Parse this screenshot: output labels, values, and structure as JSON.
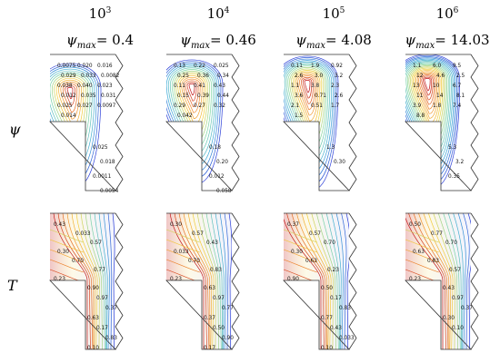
{
  "columns": [
    {
      "ra": "10",
      "ra_exp": "3",
      "psi_label": "ψ",
      "psi_sub": "max",
      "psi_value": "= 0.4"
    },
    {
      "ra": "10",
      "ra_exp": "4",
      "psi_label": "ψ",
      "psi_sub": "max",
      "psi_value": "= 0.46"
    },
    {
      "ra": "10",
      "ra_exp": "5",
      "psi_label": "ψ",
      "psi_sub": "max",
      "psi_value": "= 4.08"
    },
    {
      "ra": "10",
      "ra_exp": "6",
      "psi_label": "ψ",
      "psi_sub": "max",
      "psi_value": "= 14.03"
    }
  ],
  "row_labels": {
    "psi": "ψ",
    "t": "T"
  },
  "psi_panels": [
    {
      "labels": [
        "0.0075",
        "0.020",
        "0.016",
        "0.029",
        "0.033",
        "0.0082",
        "0.038",
        "0.040",
        "0.023",
        "0.012",
        "0.035",
        "0.031",
        "0.025",
        "0.027",
        "0.0097",
        "0.014",
        "0.025",
        "0.018",
        "0.0011",
        "0.0054"
      ]
    },
    {
      "labels": [
        "0.13",
        "0.22",
        "0.025",
        "0.25",
        "0.36",
        "0.34",
        "0.11",
        "0.41",
        "0.43",
        "0.15",
        "0.39",
        "0.44",
        "0.29",
        "0.27",
        "0.32",
        "0.042",
        "0.18",
        "0.20",
        "0.012",
        "0.058"
      ]
    },
    {
      "labels": [
        "0.11",
        "1.9",
        "0.92",
        "2.6",
        "3.0",
        "3.2",
        "1.1",
        "3.8",
        "2.3",
        "3.6",
        "0.71",
        "2.6",
        "2.1",
        "0.51",
        "1.7",
        "1.5",
        "1.3",
        "0.30"
      ]
    },
    {
      "labels": [
        "1.1",
        "6.0",
        "9.5",
        "12",
        "4.6",
        "2.5",
        "13",
        "10",
        "6.7",
        "11",
        "14",
        "8.1",
        "3.9",
        "1.8",
        "7.4",
        "8.8",
        "5.3",
        "3.2",
        "0.35"
      ]
    }
  ],
  "t_panels": [
    {
      "labels": [
        "0.43",
        "0.033",
        "0.57",
        "0.30",
        "0.70",
        "0.77",
        "0.23",
        "0.90",
        "0.97",
        "0.37",
        "0.63",
        "0.17",
        "0.83",
        "0.10"
      ]
    },
    {
      "labels": [
        "0.30",
        "0.57",
        "0.43",
        "0.033",
        "0.70",
        "0.83",
        "0.23",
        "0.63",
        "0.97",
        "0.77",
        "0.37",
        "0.50",
        "0.90",
        "0.17"
      ]
    },
    {
      "labels": [
        "0.37",
        "0.57",
        "0.70",
        "0.30",
        "0.63",
        "0.23",
        "0.90",
        "0.50",
        "0.17",
        "0.83",
        "0.77",
        "0.43",
        "0.033",
        "0.10"
      ]
    },
    {
      "labels": [
        "0.50",
        "0.77",
        "0.70",
        "0.63",
        "0.83",
        "0.57",
        "0.23",
        "0.43",
        "0.97",
        "0.37",
        "0.30",
        "0.10"
      ]
    }
  ],
  "colors": {
    "cold": "#2c3fd8",
    "mid": "#7fd6a5",
    "warm": "#f2d23c",
    "hot": "#c2181b"
  }
}
